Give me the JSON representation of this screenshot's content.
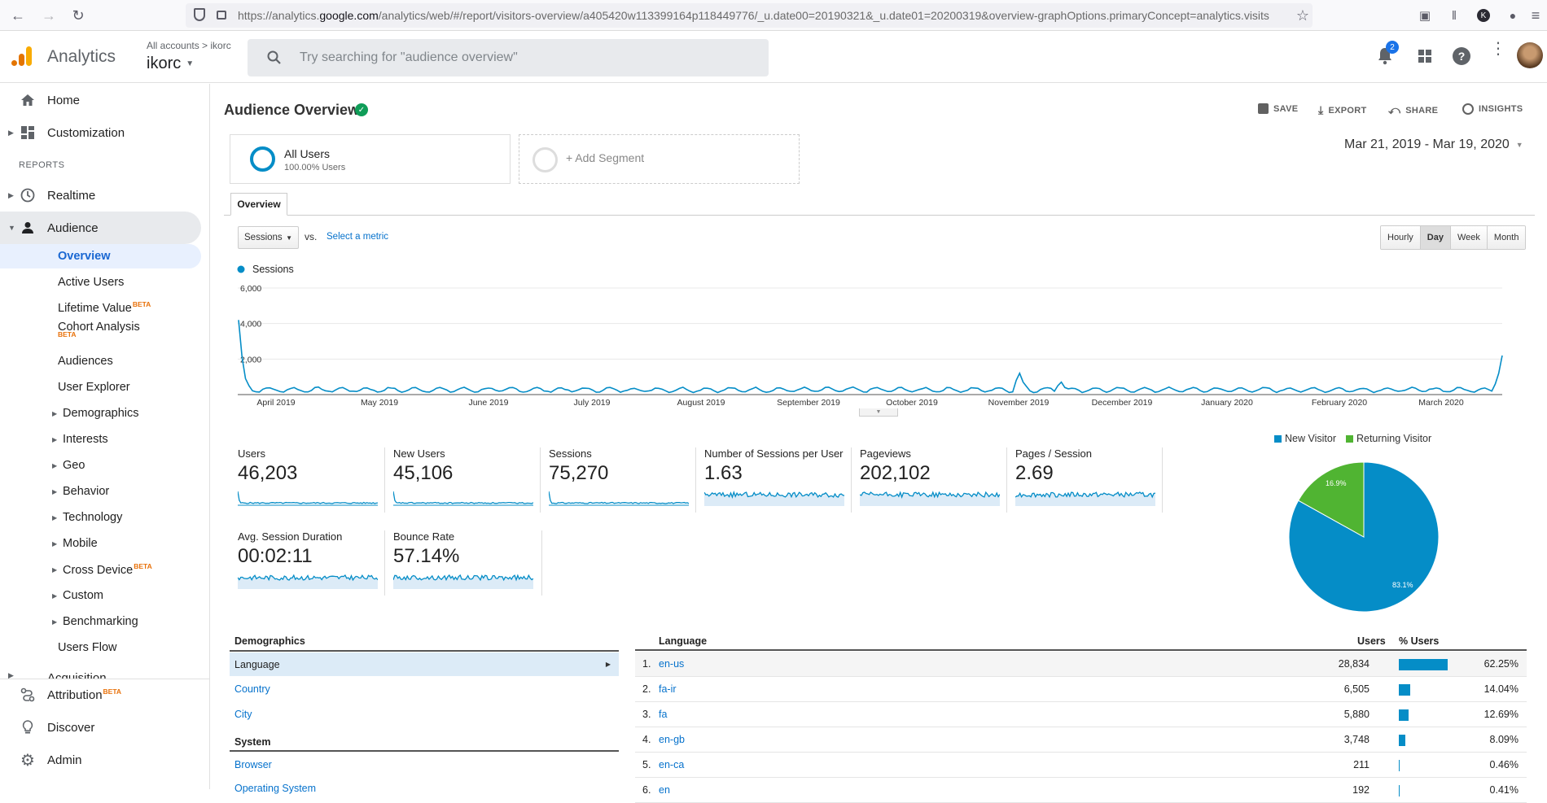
{
  "browser": {
    "url_prefix": "https://analytics.",
    "url_domain": "google.com",
    "url_rest": "/analytics/web/#/report/visitors-overview/a405420w113399164p118449776/_u.date00=20190321&_u.date01=20200319&overview-graphOptions.primaryConcept=analytics.visits"
  },
  "header": {
    "app_name": "Analytics",
    "breadcrumb": "All accounts > ikorc",
    "account": "ikorc",
    "search_placeholder": "Try searching for \"audience overview\"",
    "notif_count": "2",
    "profile_initial": "K"
  },
  "sidebar": {
    "home": "Home",
    "customization": "Customization",
    "reports_heading": "REPORTS",
    "realtime": "Realtime",
    "audience": "Audience",
    "sub": {
      "overview": "Overview",
      "active_users": "Active Users",
      "lifetime_value": "Lifetime Value",
      "cohort": "Cohort Analysis",
      "audiences": "Audiences",
      "user_explorer": "User Explorer",
      "demographics": "Demographics",
      "interests": "Interests",
      "geo": "Geo",
      "behavior": "Behavior",
      "technology": "Technology",
      "mobile": "Mobile",
      "cross_device": "Cross Device",
      "custom": "Custom",
      "benchmarking": "Benchmarking",
      "users_flow": "Users Flow"
    },
    "beta": "BETA",
    "acquisition": "Acquisition",
    "attribution": "Attribution",
    "discover": "Discover",
    "admin": "Admin"
  },
  "page": {
    "title": "Audience Overview",
    "save": "SAVE",
    "export": "EXPORT",
    "share": "SHARE",
    "insights": "INSIGHTS",
    "date_range": "Mar 21, 2019 - Mar 19, 2020",
    "segment": {
      "name": "All Users",
      "pct": "100.00% Users",
      "add": "+ Add Segment"
    },
    "tab": "Overview",
    "metric_select": "Sessions",
    "vs": "vs.",
    "select_metric": "Select a metric",
    "granularity": [
      "Hourly",
      "Day",
      "Week",
      "Month"
    ],
    "active_granularity": "Day"
  },
  "chart_data": {
    "type": "line",
    "series": [
      {
        "name": "Sessions",
        "color": "#058dc7"
      }
    ],
    "ylim": [
      0,
      6000
    ],
    "yticks": [
      "6,000",
      "4,000",
      "2,000"
    ],
    "xticks": [
      "April 2019",
      "May 2019",
      "June 2019",
      "July 2019",
      "August 2019",
      "September 2019",
      "October 2019",
      "November 2019",
      "December 2019",
      "January 2020",
      "February 2020",
      "March 2020"
    ],
    "legend": "Sessions"
  },
  "kpis": [
    {
      "title": "Users",
      "value": "46,203"
    },
    {
      "title": "New Users",
      "value": "45,106"
    },
    {
      "title": "Sessions",
      "value": "75,270"
    },
    {
      "title": "Number of Sessions per User",
      "value": "1.63"
    },
    {
      "title": "Pageviews",
      "value": "202,102"
    },
    {
      "title": "Pages / Session",
      "value": "2.69"
    },
    {
      "title": "Avg. Session Duration",
      "value": "00:02:11"
    },
    {
      "title": "Bounce Rate",
      "value": "57.14%"
    }
  ],
  "pie": {
    "legend_new": "New Visitor",
    "legend_ret": "Returning Visitor",
    "new_pct": 83.1,
    "ret_pct": 16.9,
    "new_label": "83.1%",
    "ret_label": "16.9%",
    "new_color": "#058dc7",
    "ret_color": "#50b432"
  },
  "demographics": {
    "heading": "Demographics",
    "language": "Language",
    "country": "Country",
    "city": "City",
    "system_heading": "System",
    "browser": "Browser",
    "os": "Operating System"
  },
  "lang_table": {
    "col_lang": "Language",
    "col_users": "Users",
    "col_pct": "% Users",
    "rows": [
      {
        "n": "1.",
        "lang": "en-us",
        "users": "28,834",
        "pct": "62.25%",
        "frac": 0.6225
      },
      {
        "n": "2.",
        "lang": "fa-ir",
        "users": "6,505",
        "pct": "14.04%",
        "frac": 0.1404
      },
      {
        "n": "3.",
        "lang": "fa",
        "users": "5,880",
        "pct": "12.69%",
        "frac": 0.1269
      },
      {
        "n": "4.",
        "lang": "en-gb",
        "users": "3,748",
        "pct": "8.09%",
        "frac": 0.0809
      },
      {
        "n": "5.",
        "lang": "en-ca",
        "users": "211",
        "pct": "0.46%",
        "frac": 0.0046
      },
      {
        "n": "6.",
        "lang": "en",
        "users": "192",
        "pct": "0.41%",
        "frac": 0.0041
      }
    ]
  }
}
